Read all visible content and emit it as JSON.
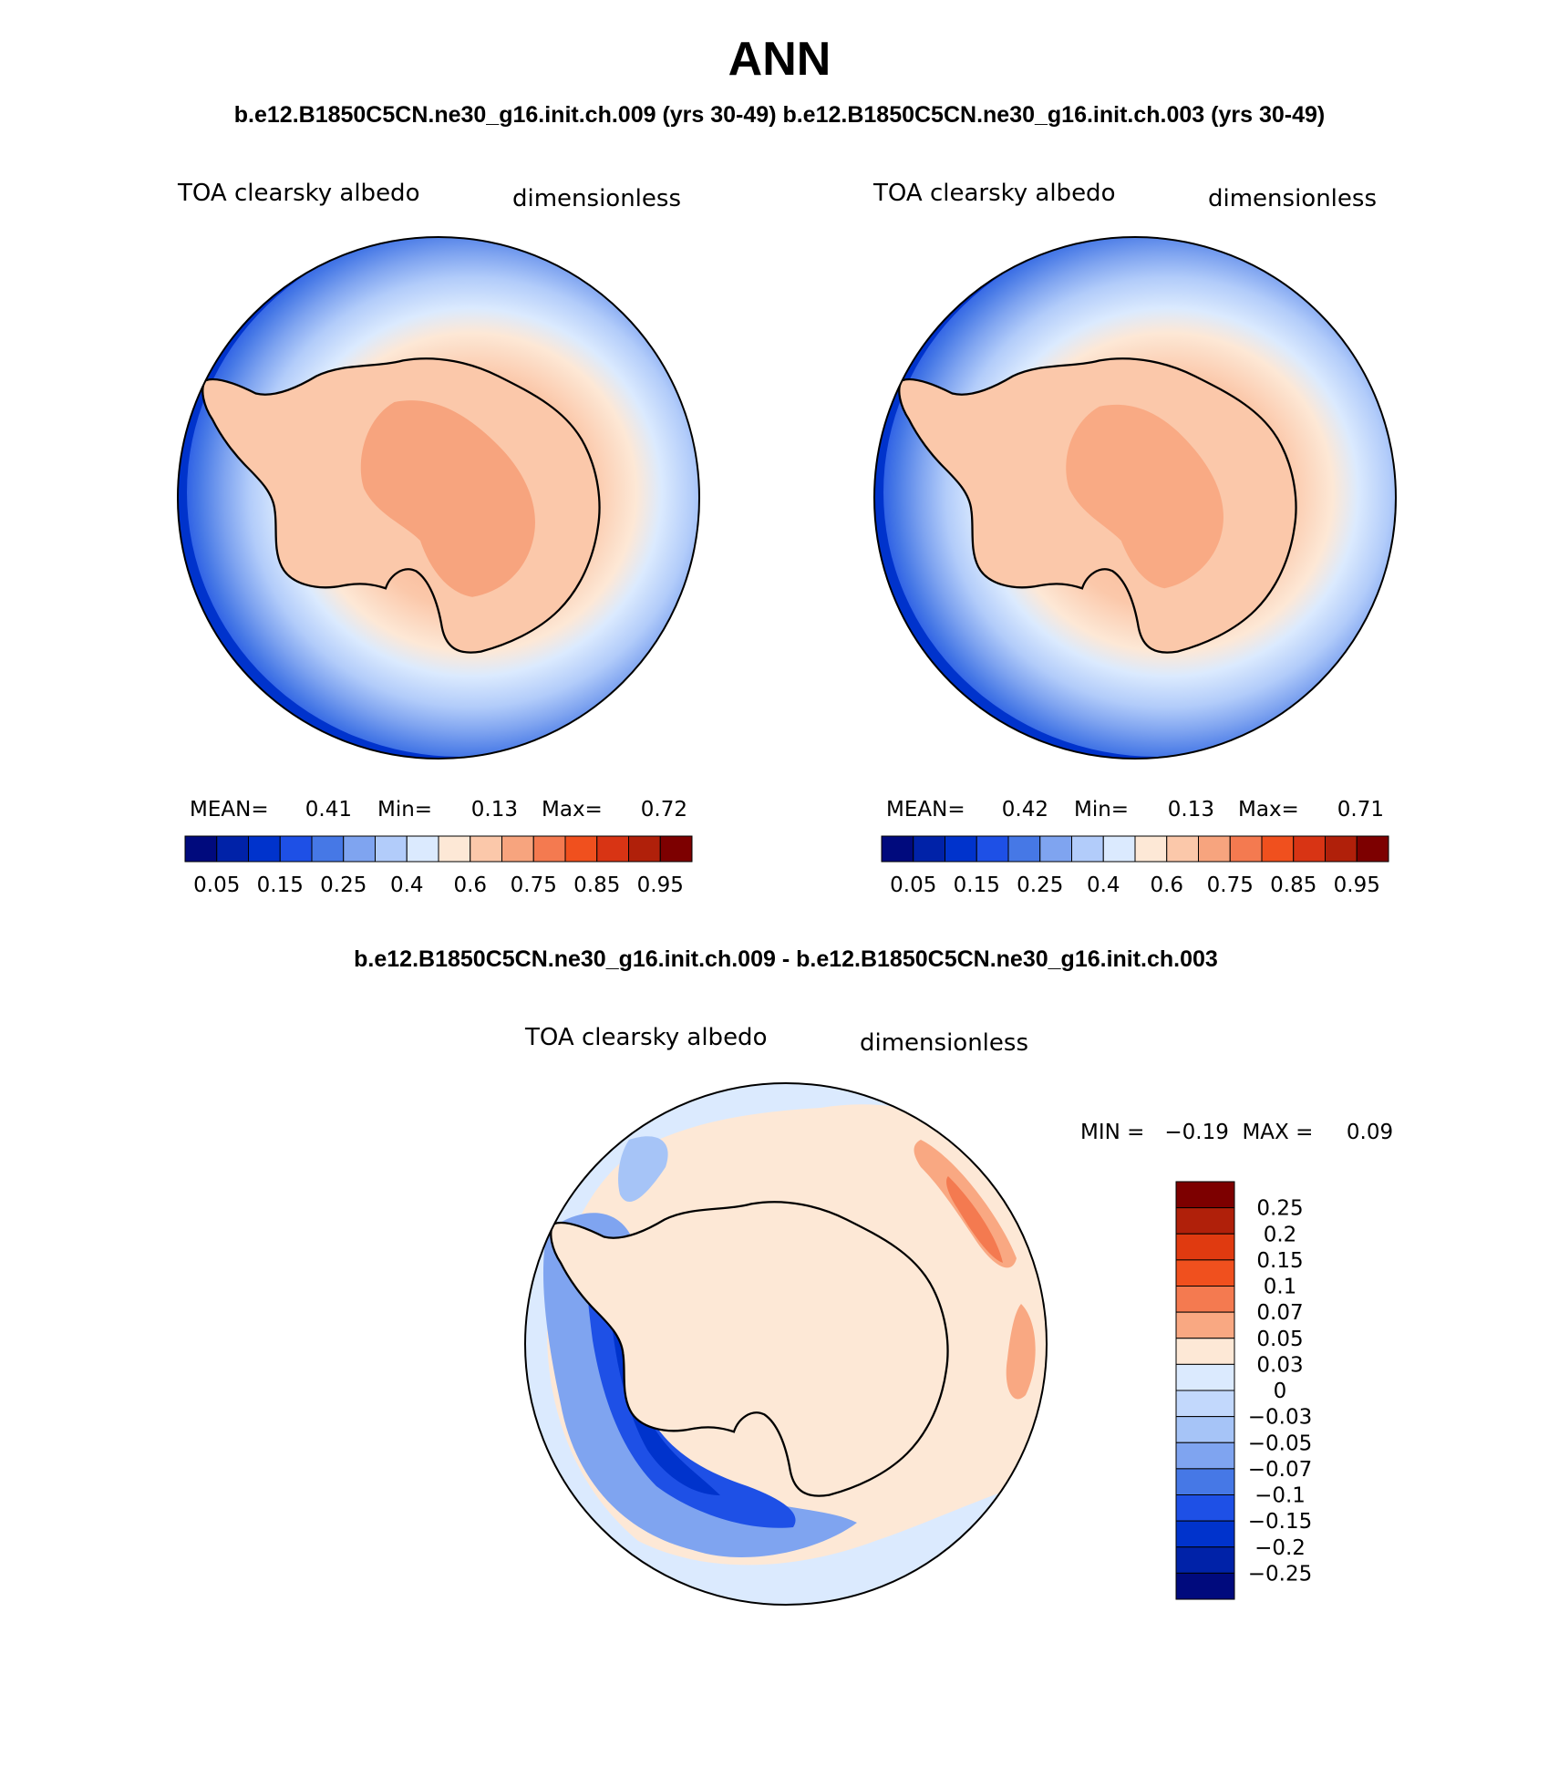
{
  "title": "ANN",
  "top_caption": "b.e12.B1850C5CN.ne30_g16.init.ch.009 (yrs 30-49) b.e12.B1850C5CN.ne30_g16.init.ch.003 (yrs 30-49)",
  "diff_caption": "b.e12.B1850C5CN.ne30_g16.init.ch.009 - b.e12.B1850C5CN.ne30_g16.init.ch.003",
  "panels": [
    {
      "variable": "TOA clearsky albedo",
      "units": "dimensionless",
      "stats": {
        "mean_label": "MEAN=",
        "mean": "0.41",
        "min_label": "Min=",
        "min": "0.13",
        "max_label": "Max=",
        "max": "0.72"
      }
    },
    {
      "variable": "TOA clearsky albedo",
      "units": "dimensionless",
      "stats": {
        "mean_label": "MEAN=",
        "mean": "0.42",
        "min_label": "Min=",
        "min": "0.13",
        "max_label": "Max=",
        "max": "0.71"
      }
    }
  ],
  "abs_colorbar": {
    "tick_labels": [
      "0.05",
      "0.15",
      "0.25",
      "0.4",
      "0.6",
      "0.75",
      "0.85",
      "0.95"
    ],
    "colors": [
      "#000a7d",
      "#0022a8",
      "#0033cc",
      "#1e50e6",
      "#4678e6",
      "#7fa4f0",
      "#b2ccfa",
      "#dbeafe",
      "#fde8d6",
      "#fbc8aa",
      "#f7a47e",
      "#f47a50",
      "#f0501e",
      "#d83414",
      "#b0200a",
      "#7d0000"
    ]
  },
  "diff_panel": {
    "variable": "TOA clearsky albedo",
    "units": "dimensionless",
    "stats": "MIN =   −0.19  MAX =     0.09",
    "colorbar": {
      "tick_labels": [
        "0.25",
        "0.2",
        "0.15",
        "0.1",
        "0.07",
        "0.05",
        "0.03",
        "0",
        "−0.03",
        "−0.05",
        "−0.07",
        "−0.1",
        "−0.15",
        "−0.2",
        "−0.25"
      ],
      "colors": [
        "#7d0000",
        "#b0200a",
        "#e03a10",
        "#f0501e",
        "#f47a50",
        "#f9a882",
        "#fde8d6",
        "#dbeafe",
        "#c2d8fc",
        "#a6c4f7",
        "#7fa4f0",
        "#4678e6",
        "#1e50e6",
        "#0033cc",
        "#0022a8",
        "#000a7d"
      ]
    }
  }
}
